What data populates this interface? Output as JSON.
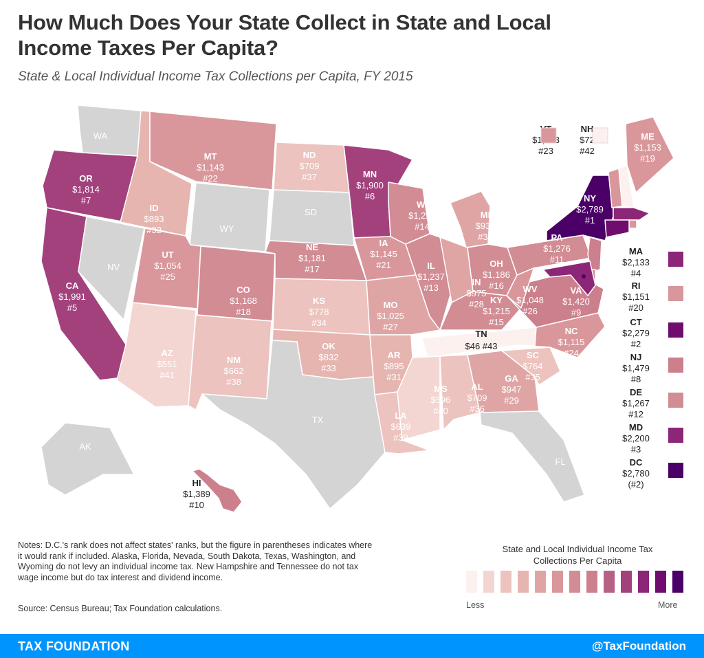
{
  "title": "How Much Does Your State Collect in State and Local Income Taxes Per Capita?",
  "subtitle": "State & Local Individual Income Tax Collections per Capita, FY 2015",
  "colors": {
    "no_tax": "#d4d4d4",
    "scale": [
      "#fcf1ef",
      "#f3d6d2",
      "#ecc3be",
      "#e6b5b0",
      "#dfa5a5",
      "#d9979b",
      "#d28c94",
      "#cc7f8c",
      "#b66084",
      "#a3417d",
      "#8c2677",
      "#6f0c6d",
      "#4a0066"
    ],
    "footer": "#0094ff"
  },
  "states": [
    {
      "abbr": "WA",
      "value": "",
      "rank": "",
      "tier": -1
    },
    {
      "abbr": "OR",
      "value": "$1,814",
      "rank": "#7",
      "tier": 9
    },
    {
      "abbr": "CA",
      "value": "$1,991",
      "rank": "#5",
      "tier": 9
    },
    {
      "abbr": "NV",
      "value": "",
      "rank": "",
      "tier": -1
    },
    {
      "abbr": "ID",
      "value": "$893",
      "rank": "#32",
      "tier": 3
    },
    {
      "abbr": "MT",
      "value": "$1,143",
      "rank": "#22",
      "tier": 5
    },
    {
      "abbr": "WY",
      "value": "",
      "rank": "",
      "tier": -1
    },
    {
      "abbr": "UT",
      "value": "$1,054",
      "rank": "#25",
      "tier": 5
    },
    {
      "abbr": "AZ",
      "value": "$551",
      "rank": "#41",
      "tier": 1
    },
    {
      "abbr": "CO",
      "value": "$1,168",
      "rank": "#18",
      "tier": 6
    },
    {
      "abbr": "NM",
      "value": "$662",
      "rank": "#38",
      "tier": 2
    },
    {
      "abbr": "ND",
      "value": "$709",
      "rank": "#37",
      "tier": 2
    },
    {
      "abbr": "SD",
      "value": "",
      "rank": "",
      "tier": -1
    },
    {
      "abbr": "NE",
      "value": "$1,181",
      "rank": "#17",
      "tier": 6
    },
    {
      "abbr": "KS",
      "value": "$778",
      "rank": "#34",
      "tier": 2
    },
    {
      "abbr": "OK",
      "value": "$832",
      "rank": "#33",
      "tier": 3
    },
    {
      "abbr": "TX",
      "value": "",
      "rank": "",
      "tier": -1
    },
    {
      "abbr": "MN",
      "value": "$1,900",
      "rank": "#6",
      "tier": 9
    },
    {
      "abbr": "IA",
      "value": "$1,145",
      "rank": "#21",
      "tier": 5
    },
    {
      "abbr": "MO",
      "value": "$1,025",
      "rank": "#27",
      "tier": 4
    },
    {
      "abbr": "AR",
      "value": "$895",
      "rank": "#31",
      "tier": 3
    },
    {
      "abbr": "LA",
      "value": "$639",
      "rank": "#39",
      "tier": 2
    },
    {
      "abbr": "WI",
      "value": "$1,225",
      "rank": "#14",
      "tier": 6
    },
    {
      "abbr": "IL",
      "value": "$1,237",
      "rank": "#13",
      "tier": 6
    },
    {
      "abbr": "MI",
      "value": "$938",
      "rank": "#30",
      "tier": 4
    },
    {
      "abbr": "IN",
      "value": "$975",
      "rank": "#28",
      "tier": 4
    },
    {
      "abbr": "OH",
      "value": "$1,186",
      "rank": "#16",
      "tier": 6
    },
    {
      "abbr": "KY",
      "value": "$1,215",
      "rank": "#15",
      "tier": 6
    },
    {
      "abbr": "TN",
      "value": "$46",
      "rank": "#43",
      "tier": 0
    },
    {
      "abbr": "MS",
      "value": "$596",
      "rank": "#40",
      "tier": 1
    },
    {
      "abbr": "AL",
      "value": "$709",
      "rank": "#36",
      "tier": 2
    },
    {
      "abbr": "GA",
      "value": "$947",
      "rank": "#29",
      "tier": 4
    },
    {
      "abbr": "FL",
      "value": "",
      "rank": "",
      "tier": -1
    },
    {
      "abbr": "SC",
      "value": "$764",
      "rank": "#35",
      "tier": 2
    },
    {
      "abbr": "NC",
      "value": "$1,115",
      "rank": "#24",
      "tier": 5
    },
    {
      "abbr": "VA",
      "value": "$1,420",
      "rank": "#9",
      "tier": 7
    },
    {
      "abbr": "WV",
      "value": "$1,048",
      "rank": "#26",
      "tier": 5
    },
    {
      "abbr": "PA",
      "value": "$1,276",
      "rank": "#11",
      "tier": 6
    },
    {
      "abbr": "NY",
      "value": "$2,789",
      "rank": "#1",
      "tier": 12
    },
    {
      "abbr": "VT",
      "value": "$1,133",
      "rank": "#23",
      "tier": 5
    },
    {
      "abbr": "NH",
      "value": "$72",
      "rank": "#42",
      "tier": 0
    },
    {
      "abbr": "ME",
      "value": "$1,153",
      "rank": "#19",
      "tier": 5
    },
    {
      "abbr": "MA",
      "value": "$2,133",
      "rank": "#4",
      "tier": 10
    },
    {
      "abbr": "RI",
      "value": "$1,151",
      "rank": "#20",
      "tier": 5
    },
    {
      "abbr": "CT",
      "value": "$2,279",
      "rank": "#2",
      "tier": 11
    },
    {
      "abbr": "NJ",
      "value": "$1,479",
      "rank": "#8",
      "tier": 7
    },
    {
      "abbr": "DE",
      "value": "$1,267",
      "rank": "#12",
      "tier": 6
    },
    {
      "abbr": "MD",
      "value": "$2,200",
      "rank": "#3",
      "tier": 10
    },
    {
      "abbr": "DC",
      "value": "$2,780",
      "rank": "(#2)",
      "tier": 12
    },
    {
      "abbr": "AK",
      "value": "",
      "rank": "",
      "tier": -1
    },
    {
      "abbr": "HI",
      "value": "$1,389",
      "rank": "#10",
      "tier": 7
    }
  ],
  "side_legend": [
    "MA",
    "RI",
    "CT",
    "NJ",
    "DE",
    "MD",
    "DC"
  ],
  "notes": "Notes: D.C.'s rank does not affect states' ranks, but the figure in parentheses indicates where it would rank if included. Alaska, Florida, Nevada, South Dakota, Texas, Washington, and Wyoming do not levy an individual income tax. New Hampshire and Tennessee do not tax wage income but do tax interest and dividend income.",
  "source": "Source: Census Bureau; Tax Foundation calculations.",
  "legend": {
    "title": "State and Local Individual Income Tax Collections Per Capita",
    "less": "Less",
    "more": "More"
  },
  "footer": {
    "left": "TAX FOUNDATION",
    "right": "@TaxFoundation"
  }
}
